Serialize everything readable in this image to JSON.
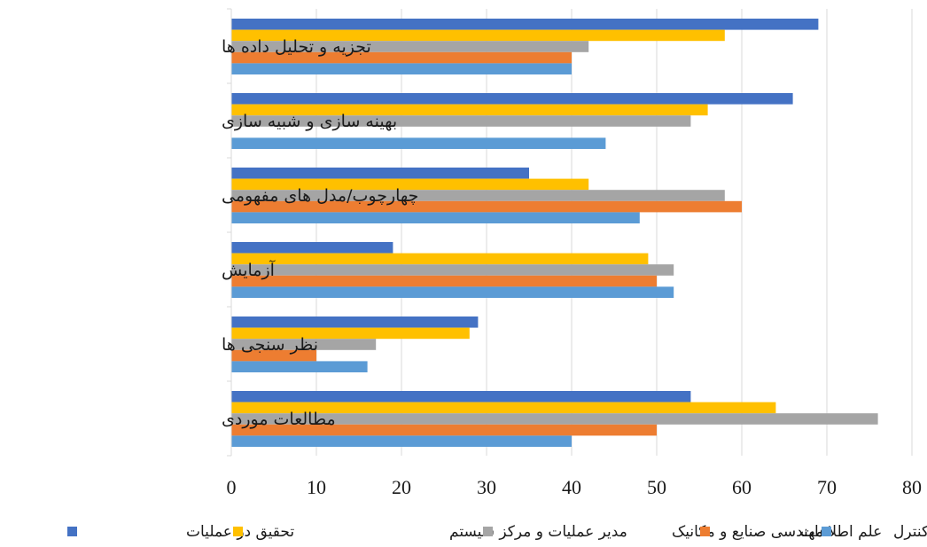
{
  "chart_data": {
    "type": "bar",
    "orientation": "horizontal",
    "title": "",
    "xlabel": "",
    "ylabel": "",
    "xlim": [
      0,
      80
    ],
    "x_ticks": [
      0,
      10,
      20,
      30,
      40,
      50,
      60,
      70,
      80
    ],
    "grid": "vertical",
    "legend_position": "bottom",
    "categories": [
      "تجزیه و تحلیل داده ها",
      "بهینه سازی و شبیه سازی",
      "چهارچوب/مدل های مفهومی",
      "آزمایش",
      "نظر سنجی ها",
      "مطالعات موردی"
    ],
    "series": [
      {
        "name": "تحقیق در عملیات",
        "color": "#4472C4",
        "values": [
          69,
          66,
          35,
          19,
          29,
          54
        ]
      },
      {
        "name": "مدیر عملیات و مرکز سیستم",
        "color": "#FFC000",
        "values": [
          58,
          56,
          42,
          49,
          28,
          64
        ]
      },
      {
        "name": "مهندسی صنایع و مکانیک",
        "color": "#A5A5A5",
        "values": [
          42,
          54,
          58,
          52,
          17,
          76
        ]
      },
      {
        "name": "علم اطلاعات",
        "color": "#ED7D31",
        "values": [
          40,
          0,
          60,
          50,
          10,
          50
        ]
      },
      {
        "name": "کنترل",
        "color": "#5B9BD5",
        "values": [
          40,
          44,
          48,
          52,
          16,
          40
        ]
      }
    ]
  }
}
